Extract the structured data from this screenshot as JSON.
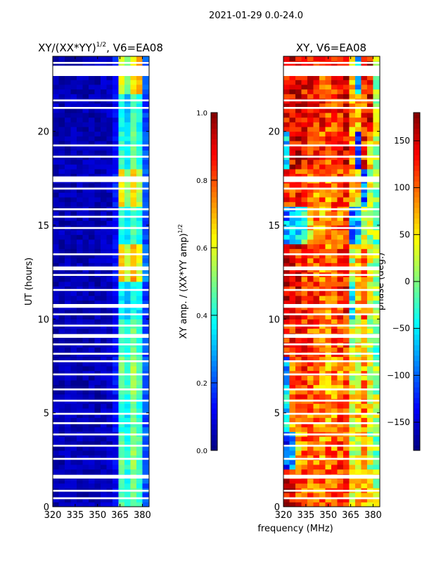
{
  "chart_data": {
    "suptitle": "2021-01-29 0.0-24.0",
    "xlabel": "frequency (MHz)",
    "panels": [
      {
        "type": "heatmap",
        "title": "XY/(XX*YY)^1/2, V6=EA08",
        "title_main": "XY/(XX*YY)",
        "title_sup": "1/2",
        "title_tail": ", V6=EA08",
        "ylabel": "UT (hours)",
        "xlim": [
          320,
          384.5
        ],
        "ylim": [
          0,
          24
        ],
        "xticks": [
          "320",
          "335",
          "350",
          "365",
          "380"
        ],
        "yticks": [
          "0",
          "5",
          "10",
          "15",
          "20"
        ],
        "freq_bins": [
          320,
          324,
          328,
          332,
          336,
          340,
          344,
          348,
          352,
          356,
          360,
          364,
          368,
          372,
          376,
          380,
          384
        ],
        "time_bins": [
          0,
          2,
          4,
          6,
          8,
          10,
          12,
          14,
          16,
          18,
          20,
          22,
          24
        ],
        "values": [
          [
            0.05,
            0.05,
            0.05,
            0.05,
            0.05,
            0.05,
            0.05,
            0.05,
            0.06,
            0.06,
            0.12,
            0.45,
            0.38,
            0.5,
            0.42,
            0.2
          ],
          [
            0.05,
            0.05,
            0.05,
            0.05,
            0.05,
            0.05,
            0.05,
            0.05,
            0.06,
            0.06,
            0.12,
            0.48,
            0.4,
            0.52,
            0.45,
            0.22
          ],
          [
            0.05,
            0.05,
            0.05,
            0.05,
            0.05,
            0.05,
            0.05,
            0.05,
            0.06,
            0.06,
            0.12,
            0.42,
            0.36,
            0.48,
            0.4,
            0.2
          ],
          [
            0.05,
            0.05,
            0.05,
            0.05,
            0.05,
            0.05,
            0.05,
            0.05,
            0.06,
            0.06,
            0.14,
            0.5,
            0.42,
            0.55,
            0.45,
            0.22
          ],
          [
            0.05,
            0.05,
            0.05,
            0.05,
            0.05,
            0.05,
            0.05,
            0.05,
            0.06,
            0.06,
            0.12,
            0.45,
            0.38,
            0.5,
            0.42,
            0.2
          ],
          [
            0.05,
            0.05,
            0.05,
            0.05,
            0.05,
            0.05,
            0.05,
            0.05,
            0.06,
            0.06,
            0.1,
            0.35,
            0.3,
            0.4,
            0.35,
            0.18
          ],
          [
            0.05,
            0.05,
            0.05,
            0.05,
            0.05,
            0.05,
            0.05,
            0.05,
            0.06,
            0.06,
            0.15,
            0.7,
            0.55,
            0.72,
            0.6,
            0.25
          ],
          [
            0.05,
            0.05,
            0.05,
            0.05,
            0.05,
            0.05,
            0.05,
            0.05,
            0.06,
            0.06,
            0.12,
            0.4,
            0.34,
            0.45,
            0.38,
            0.2
          ],
          [
            0.05,
            0.05,
            0.05,
            0.05,
            0.05,
            0.05,
            0.05,
            0.05,
            0.06,
            0.06,
            0.15,
            0.65,
            0.5,
            0.68,
            0.55,
            0.22
          ],
          [
            0.05,
            0.05,
            0.05,
            0.05,
            0.05,
            0.05,
            0.05,
            0.05,
            0.06,
            0.06,
            0.12,
            0.42,
            0.36,
            0.48,
            0.4,
            0.2
          ],
          [
            0.06,
            0.05,
            0.05,
            0.05,
            0.05,
            0.05,
            0.05,
            0.05,
            0.06,
            0.06,
            0.12,
            0.38,
            0.32,
            0.44,
            0.38,
            0.18
          ],
          [
            0.05,
            0.05,
            0.05,
            0.05,
            0.05,
            0.05,
            0.05,
            0.05,
            0.06,
            0.06,
            0.15,
            0.6,
            0.5,
            0.65,
            0.7,
            0.22
          ]
        ],
        "colorbar": {
          "label": "XY amp. / (XX*YY amp)^1/2",
          "label_main": "XY amp. / (XX*YY amp)",
          "label_sup": "1/2",
          "range": [
            0,
            1
          ],
          "ticks": [
            "0.0",
            "0.2",
            "0.4",
            "0.6",
            "0.8",
            "1.0"
          ]
        }
      },
      {
        "type": "heatmap",
        "title": "XY, V6=EA08",
        "xlim": [
          320,
          384.5
        ],
        "ylim": [
          0,
          24
        ],
        "xticks": [
          "320",
          "335",
          "350",
          "365",
          "380"
        ],
        "yticks": [
          "0",
          "5",
          "10",
          "15",
          "20"
        ],
        "freq_bins": [
          320,
          324,
          328,
          332,
          336,
          340,
          344,
          348,
          352,
          356,
          360,
          364,
          368,
          372,
          376,
          380,
          384
        ],
        "time_bins": [
          0,
          2,
          4,
          6,
          8,
          10,
          12,
          14,
          16,
          18,
          20,
          22,
          24
        ],
        "values": [
          [
            140,
            130,
            120,
            110,
            100,
            90,
            90,
            95,
            100,
            110,
            120,
            40,
            60,
            80,
            40,
            20
          ],
          [
            -120,
            -90,
            60,
            100,
            110,
            90,
            80,
            90,
            100,
            110,
            110,
            30,
            40,
            70,
            20,
            10
          ],
          [
            -60,
            90,
            120,
            110,
            100,
            90,
            80,
            80,
            90,
            100,
            100,
            40,
            60,
            90,
            50,
            20
          ],
          [
            -80,
            100,
            110,
            110,
            100,
            90,
            80,
            80,
            90,
            90,
            100,
            30,
            50,
            80,
            40,
            10
          ],
          [
            120,
            130,
            130,
            120,
            110,
            100,
            90,
            90,
            100,
            110,
            120,
            20,
            40,
            60,
            20,
            0
          ],
          [
            150,
            140,
            140,
            130,
            120,
            110,
            100,
            100,
            110,
            120,
            130,
            -40,
            60,
            100,
            40,
            10
          ],
          [
            140,
            130,
            130,
            120,
            110,
            100,
            90,
            90,
            100,
            110,
            120,
            30,
            60,
            90,
            30,
            10
          ],
          [
            -80,
            -60,
            -40,
            -30,
            60,
            90,
            80,
            80,
            90,
            100,
            110,
            -90,
            -60,
            40,
            20,
            0
          ],
          [
            130,
            120,
            120,
            110,
            100,
            90,
            90,
            90,
            100,
            110,
            120,
            40,
            60,
            -100,
            30,
            10
          ],
          [
            -60,
            140,
            150,
            140,
            130,
            120,
            110,
            110,
            120,
            130,
            140,
            90,
            -120,
            120,
            60,
            20
          ],
          [
            130,
            140,
            150,
            150,
            140,
            130,
            120,
            110,
            120,
            130,
            140,
            60,
            80,
            110,
            150,
            20
          ],
          [
            150,
            160,
            150,
            140,
            130,
            120,
            110,
            110,
            120,
            130,
            140,
            60,
            -60,
            120,
            150,
            20
          ]
        ],
        "colorbar": {
          "label": "phase (deg.)",
          "range": [
            -180,
            180
          ],
          "ticks": [
            "−150",
            "−100",
            "−50",
            "0",
            "50",
            "100",
            "150"
          ],
          "tick_values": [
            -150,
            -100,
            -50,
            0,
            50,
            100,
            150
          ]
        }
      }
    ],
    "flagged_ut_hours": [
      [
        0.4,
        0.5
      ],
      [
        0.8,
        0.9
      ],
      [
        1.5,
        1.7
      ],
      [
        2.5,
        2.6
      ],
      [
        3.2,
        3.3
      ],
      [
        3.8,
        3.9
      ],
      [
        4.4,
        4.5
      ],
      [
        4.9,
        5.0
      ],
      [
        5.6,
        5.7
      ],
      [
        6.2,
        6.3
      ],
      [
        7.0,
        7.1
      ],
      [
        7.7,
        7.8
      ],
      [
        8.1,
        8.2
      ],
      [
        8.6,
        8.7
      ],
      [
        9.0,
        9.2
      ],
      [
        9.6,
        9.7
      ],
      [
        10.2,
        10.3
      ],
      [
        10.6,
        10.8
      ],
      [
        11.5,
        11.6
      ],
      [
        12.3,
        12.4
      ],
      [
        12.6,
        12.8
      ],
      [
        13.4,
        13.5
      ],
      [
        14.8,
        14.9
      ],
      [
        15.4,
        15.5
      ],
      [
        15.8,
        15.9
      ],
      [
        16.9,
        17.0
      ],
      [
        17.3,
        17.6
      ],
      [
        18.6,
        18.7
      ],
      [
        19.2,
        19.3
      ],
      [
        21.2,
        21.3
      ],
      [
        21.6,
        21.7
      ],
      [
        22.95,
        23.5
      ],
      [
        23.6,
        23.7
      ]
    ]
  }
}
